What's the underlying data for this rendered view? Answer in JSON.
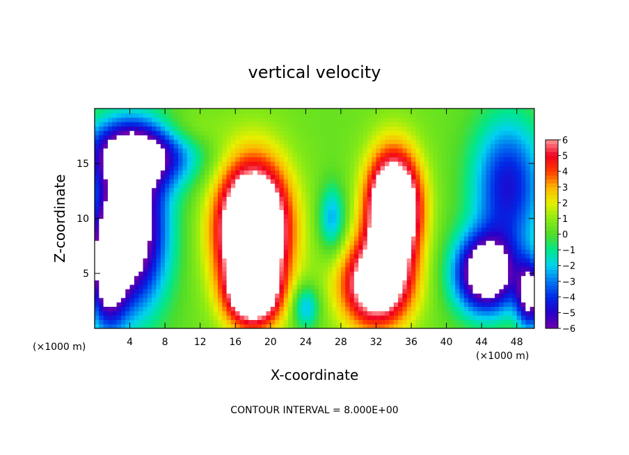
{
  "chart_data": {
    "type": "heatmap",
    "title": "vertical velocity",
    "xlabel": "X-coordinate",
    "ylabel": "Z-coordinate",
    "x_unit": "(×1000 m)",
    "z_unit": "(×1000 m)",
    "xlim": [
      0,
      50
    ],
    "ylim": [
      0,
      20
    ],
    "x_ticks": [
      4,
      8,
      12,
      16,
      20,
      24,
      28,
      32,
      36,
      40,
      44,
      48
    ],
    "y_ticks": [
      5,
      10,
      15
    ],
    "colorbar": {
      "min": -6,
      "max": 6,
      "ticks": [
        6,
        5,
        4,
        3,
        2,
        1,
        0,
        -1,
        -2,
        -3,
        -4,
        -5,
        -6
      ]
    },
    "footer": "CONTOUR INTERVAL = 8.000E+00",
    "features": [
      {
        "sign": "down",
        "cx": 4,
        "cz": 9,
        "rx": 4,
        "rz": 7,
        "amp": 9
      },
      {
        "sign": "down",
        "cx": 1.5,
        "cz": 5,
        "rx": 2,
        "rz": 5,
        "amp": 6
      },
      {
        "sign": "down",
        "cx": 5,
        "cz": 16,
        "rx": 6,
        "rz": 3,
        "amp": 7
      },
      {
        "sign": "up",
        "cx": 18,
        "cz": 9,
        "rx": 4,
        "rz": 6,
        "amp": 12
      },
      {
        "sign": "up",
        "cx": 18,
        "cz": 3,
        "rx": 3,
        "rz": 3,
        "amp": 6
      },
      {
        "sign": "up",
        "cx": 34,
        "cz": 11,
        "rx": 3,
        "rz": 5,
        "amp": 11
      },
      {
        "sign": "up",
        "cx": 32,
        "cz": 4,
        "rx": 4,
        "rz": 4,
        "amp": 8
      },
      {
        "sign": "down",
        "cx": 44.5,
        "cz": 5,
        "rx": 3.5,
        "rz": 3.5,
        "amp": 9
      },
      {
        "sign": "down",
        "cx": 47,
        "cz": 13,
        "rx": 4,
        "rz": 6,
        "amp": 5
      },
      {
        "sign": "down",
        "cx": 49.5,
        "cz": 3,
        "rx": 1.5,
        "rz": 3,
        "amp": 7
      },
      {
        "sign": "down",
        "cx": 27,
        "cz": 10,
        "rx": 1.5,
        "rz": 3,
        "amp": 3
      },
      {
        "sign": "down",
        "cx": 24,
        "cz": 2,
        "rx": 1.5,
        "rz": 2,
        "amp": 3
      },
      {
        "sign": "up",
        "cx": 10,
        "cz": 18,
        "rx": 4,
        "rz": 2,
        "amp": 1.5
      }
    ]
  }
}
